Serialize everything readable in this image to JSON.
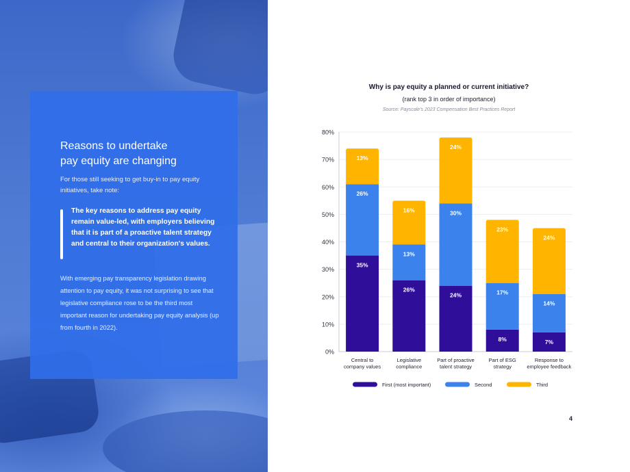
{
  "left_panel": {
    "headline": "Reasons to undertake\npay equity are changing",
    "intro": "For those still seeking to get buy-in to pay equity initiatives, take note:",
    "quote": "The key reasons to address pay equity remain value-led, with employers believing that it is part of a proactive talent strategy and central to their organization's values.",
    "body": "With emerging pay transparency legislation drawing attention to pay equity, it was not surprising to see that legislative compliance rose to be the third most important reason for undertaking pay equity analysis (up from fourth in 2022)."
  },
  "page_number": "4",
  "colors": {
    "first": "#2f0e9a",
    "second": "#3b82ec",
    "third": "#ffb400",
    "panel": "#2f6ee8"
  },
  "chart_data": {
    "type": "bar",
    "stacked": true,
    "title": "Why is pay equity a planned or current initiative?",
    "subtitle": "(rank top 3 in order of importance)",
    "source": "Source: Payscale's 2023 Compensation Best Practices Report",
    "categories": [
      [
        "Central to",
        "company values"
      ],
      [
        "Legislative",
        "compliance"
      ],
      [
        "Part of proactive",
        "talent strategy"
      ],
      [
        "Part of ESG",
        "strategy"
      ],
      [
        "Response to",
        "employee feedback"
      ]
    ],
    "series": [
      {
        "name": "First (most important)",
        "values": [
          35,
          26,
          24,
          8,
          7
        ]
      },
      {
        "name": "Second",
        "values": [
          26,
          13,
          30,
          17,
          14
        ]
      },
      {
        "name": "Third",
        "values": [
          13,
          16,
          24,
          23,
          24
        ]
      }
    ],
    "y_ticks": [
      "0%",
      "10%",
      "20%",
      "30%",
      "40%",
      "50%",
      "60%",
      "70%",
      "80%"
    ],
    "ylim": [
      0,
      80
    ],
    "grid": true,
    "legend": "bottom"
  }
}
